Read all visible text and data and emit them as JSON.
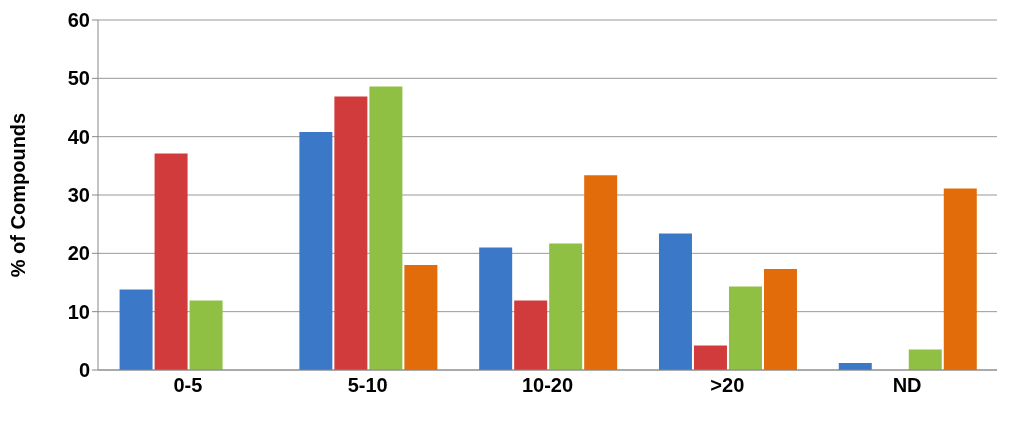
{
  "chart_data": {
    "type": "bar",
    "ylabel": "% of Compounds",
    "categories": [
      "0-5",
      "5-10",
      "10-20",
      ">20",
      "ND"
    ],
    "series": [
      {
        "color": "#3b78c8",
        "values": [
          13.8,
          40.8,
          21.0,
          23.4,
          1.2
        ]
      },
      {
        "color": "#d23b3b",
        "values": [
          37.1,
          46.9,
          11.9,
          4.2,
          0
        ]
      },
      {
        "color": "#8fc043",
        "values": [
          11.9,
          48.6,
          21.7,
          14.3,
          3.5
        ]
      },
      {
        "color": "#e36c0a",
        "values": [
          0,
          18.0,
          33.4,
          17.3,
          31.1
        ]
      }
    ],
    "ylim": [
      0,
      60
    ],
    "yticks": [
      0,
      10,
      20,
      30,
      40,
      50,
      60
    ],
    "grid": "y",
    "legend": false
  }
}
